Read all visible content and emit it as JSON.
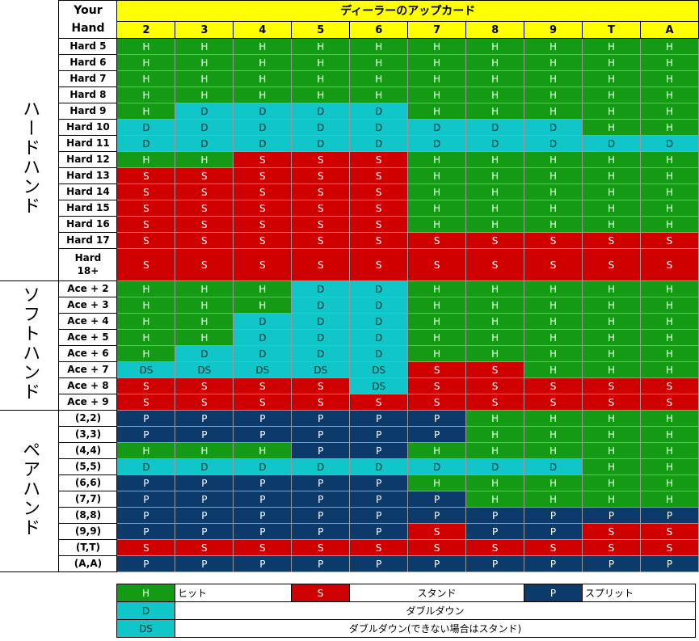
{
  "header": {
    "your_hand_line1": "Your",
    "your_hand_line2": "Hand",
    "dealer_title": "ディーラーのアップカード",
    "upcards": [
      "2",
      "3",
      "4",
      "5",
      "6",
      "7",
      "8",
      "9",
      "T",
      "A"
    ]
  },
  "sections": [
    {
      "title": "ハードハンド",
      "rows": [
        {
          "label": "Hard 5",
          "actions": [
            "H",
            "H",
            "H",
            "H",
            "H",
            "H",
            "H",
            "H",
            "H",
            "H"
          ]
        },
        {
          "label": "Hard 6",
          "actions": [
            "H",
            "H",
            "H",
            "H",
            "H",
            "H",
            "H",
            "H",
            "H",
            "H"
          ]
        },
        {
          "label": "Hard 7",
          "actions": [
            "H",
            "H",
            "H",
            "H",
            "H",
            "H",
            "H",
            "H",
            "H",
            "H"
          ]
        },
        {
          "label": "Hard 8",
          "actions": [
            "H",
            "H",
            "H",
            "H",
            "H",
            "H",
            "H",
            "H",
            "H",
            "H"
          ]
        },
        {
          "label": "Hard 9",
          "actions": [
            "H",
            "D",
            "D",
            "D",
            "D",
            "H",
            "H",
            "H",
            "H",
            "H"
          ]
        },
        {
          "label": "Hard 10",
          "actions": [
            "D",
            "D",
            "D",
            "D",
            "D",
            "D",
            "D",
            "D",
            "H",
            "H"
          ]
        },
        {
          "label": "Hard 11",
          "actions": [
            "D",
            "D",
            "D",
            "D",
            "D",
            "D",
            "D",
            "D",
            "D",
            "D"
          ]
        },
        {
          "label": "Hard 12",
          "actions": [
            "H",
            "H",
            "S",
            "S",
            "S",
            "H",
            "H",
            "H",
            "H",
            "H"
          ]
        },
        {
          "label": "Hard 13",
          "actions": [
            "S",
            "S",
            "S",
            "S",
            "S",
            "H",
            "H",
            "H",
            "H",
            "H"
          ]
        },
        {
          "label": "Hard 14",
          "actions": [
            "S",
            "S",
            "S",
            "S",
            "S",
            "H",
            "H",
            "H",
            "H",
            "H"
          ]
        },
        {
          "label": "Hard 15",
          "actions": [
            "S",
            "S",
            "S",
            "S",
            "S",
            "H",
            "H",
            "H",
            "H",
            "H"
          ]
        },
        {
          "label": "Hard 16",
          "actions": [
            "S",
            "S",
            "S",
            "S",
            "S",
            "H",
            "H",
            "H",
            "H",
            "H"
          ]
        },
        {
          "label": "Hard 17",
          "actions": [
            "S",
            "S",
            "S",
            "S",
            "S",
            "S",
            "S",
            "S",
            "S",
            "S"
          ]
        },
        {
          "label": "Hard 18+",
          "actions": [
            "S",
            "S",
            "S",
            "S",
            "S",
            "S",
            "S",
            "S",
            "S",
            "S"
          ]
        }
      ]
    },
    {
      "title": "ソフトハンド",
      "rows": [
        {
          "label": "Ace + 2",
          "actions": [
            "H",
            "H",
            "H",
            "D",
            "D",
            "H",
            "H",
            "H",
            "H",
            "H"
          ]
        },
        {
          "label": "Ace + 3",
          "actions": [
            "H",
            "H",
            "H",
            "D",
            "D",
            "H",
            "H",
            "H",
            "H",
            "H"
          ]
        },
        {
          "label": "Ace + 4",
          "actions": [
            "H",
            "H",
            "D",
            "D",
            "D",
            "H",
            "H",
            "H",
            "H",
            "H"
          ]
        },
        {
          "label": "Ace + 5",
          "actions": [
            "H",
            "H",
            "D",
            "D",
            "D",
            "H",
            "H",
            "H",
            "H",
            "H"
          ]
        },
        {
          "label": "Ace + 6",
          "actions": [
            "H",
            "D",
            "D",
            "D",
            "D",
            "H",
            "H",
            "H",
            "H",
            "H"
          ]
        },
        {
          "label": "Ace + 7",
          "actions": [
            "DS",
            "DS",
            "DS",
            "DS",
            "DS",
            "S",
            "S",
            "H",
            "H",
            "H"
          ]
        },
        {
          "label": "Ace + 8",
          "actions": [
            "S",
            "S",
            "S",
            "S",
            "DS",
            "S",
            "S",
            "S",
            "S",
            "S"
          ]
        },
        {
          "label": "Ace + 9",
          "actions": [
            "S",
            "S",
            "S",
            "S",
            "S",
            "S",
            "S",
            "S",
            "S",
            "S"
          ]
        }
      ]
    },
    {
      "title": "ペアハンド",
      "rows": [
        {
          "label": "(2,2)",
          "actions": [
            "P",
            "P",
            "P",
            "P",
            "P",
            "P",
            "H",
            "H",
            "H",
            "H"
          ]
        },
        {
          "label": "(3,3)",
          "actions": [
            "P",
            "P",
            "P",
            "P",
            "P",
            "P",
            "H",
            "H",
            "H",
            "H"
          ]
        },
        {
          "label": "(4,4)",
          "actions": [
            "H",
            "H",
            "H",
            "P",
            "P",
            "H",
            "H",
            "H",
            "H",
            "H"
          ]
        },
        {
          "label": "(5,5)",
          "actions": [
            "D",
            "D",
            "D",
            "D",
            "D",
            "D",
            "D",
            "D",
            "H",
            "H"
          ]
        },
        {
          "label": "(6,6)",
          "actions": [
            "P",
            "P",
            "P",
            "P",
            "P",
            "H",
            "H",
            "H",
            "H",
            "H"
          ]
        },
        {
          "label": "(7,7)",
          "actions": [
            "P",
            "P",
            "P",
            "P",
            "P",
            "P",
            "H",
            "H",
            "H",
            "H"
          ]
        },
        {
          "label": "(8,8)",
          "actions": [
            "P",
            "P",
            "P",
            "P",
            "P",
            "P",
            "P",
            "P",
            "P",
            "P"
          ]
        },
        {
          "label": "(9,9)",
          "actions": [
            "P",
            "P",
            "P",
            "P",
            "P",
            "S",
            "P",
            "P",
            "S",
            "S"
          ]
        },
        {
          "label": "(T,T)",
          "actions": [
            "S",
            "S",
            "S",
            "S",
            "S",
            "S",
            "S",
            "S",
            "S",
            "S"
          ]
        },
        {
          "label": "(A,A)",
          "actions": [
            "P",
            "P",
            "P",
            "P",
            "P",
            "P",
            "P",
            "P",
            "P",
            "P"
          ]
        }
      ]
    }
  ],
  "legend": {
    "hit_code": "H",
    "hit_label": "ヒット",
    "stand_code": "S",
    "stand_label": "スタンド",
    "split_code": "P",
    "split_label": "スプリット",
    "double_code": "D",
    "double_label": "ダブルダウン",
    "ds_code": "DS",
    "ds_label": "ダブルダウン(できない場合はスタンド)"
  },
  "colors": {
    "hit": "#159a15",
    "stand": "#cf0000",
    "split": "#0b3a6b",
    "double": "#10c6c8",
    "header": "#ffff00"
  }
}
